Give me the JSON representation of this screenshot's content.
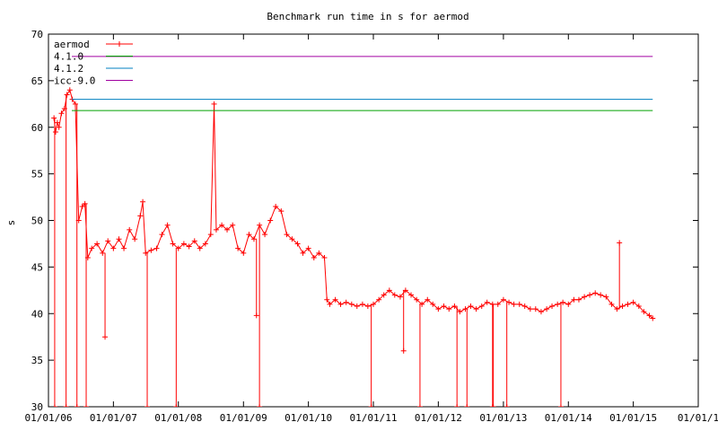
{
  "chart_data": {
    "type": "line",
    "title": "Benchmark run time in s for aermod",
    "ylabel": "s",
    "xlabel": "",
    "xlim": [
      "2006-01-01",
      "2016-01-01"
    ],
    "ylim": [
      30,
      70
    ],
    "y_ticks": [
      30,
      35,
      40,
      45,
      50,
      55,
      60,
      65,
      70
    ],
    "x_ticks": [
      {
        "date": "2006-01-01",
        "label": "01/01/06"
      },
      {
        "date": "2007-01-01",
        "label": "01/01/07"
      },
      {
        "date": "2008-01-01",
        "label": "01/01/08"
      },
      {
        "date": "2009-01-01",
        "label": "01/01/09"
      },
      {
        "date": "2010-01-01",
        "label": "01/01/10"
      },
      {
        "date": "2011-01-01",
        "label": "01/01/11"
      },
      {
        "date": "2012-01-01",
        "label": "01/01/12"
      },
      {
        "date": "2013-01-01",
        "label": "01/01/13"
      },
      {
        "date": "2014-01-01",
        "label": "01/01/14"
      },
      {
        "date": "2015-01-01",
        "label": "01/01/15"
      },
      {
        "date": "2016-01-01",
        "label": "01/01/1"
      }
    ],
    "grid": false,
    "legend_position": "top-left",
    "series": [
      {
        "name": "aermod",
        "color": "#ff0000",
        "marker": "plus",
        "points": [
          [
            "2006-02-01",
            61.0
          ],
          [
            "2006-02-10",
            59.5
          ],
          [
            "2006-02-20",
            60.5
          ],
          [
            "2006-03-01",
            60.0
          ],
          [
            "2006-03-15",
            61.5
          ],
          [
            "2006-04-01",
            62.0
          ],
          [
            "2006-04-15",
            63.5
          ],
          [
            "2006-05-01",
            64.0
          ],
          [
            "2006-05-15",
            63.0
          ],
          [
            "2006-06-01",
            62.5
          ],
          [
            "2006-06-20",
            50.0
          ],
          [
            "2006-07-10",
            51.5
          ],
          [
            "2006-07-25",
            51.8
          ],
          [
            "2006-08-10",
            46.0
          ],
          [
            "2006-09-01",
            47.0
          ],
          [
            "2006-10-01",
            47.5
          ],
          [
            "2006-11-01",
            46.5
          ],
          [
            "2006-12-01",
            47.8
          ],
          [
            "2007-01-01",
            47.0
          ],
          [
            "2007-02-01",
            48.0
          ],
          [
            "2007-03-01",
            47.0
          ],
          [
            "2007-04-01",
            49.0
          ],
          [
            "2007-05-01",
            48.0
          ],
          [
            "2007-06-01",
            50.5
          ],
          [
            "2007-06-15",
            52.0
          ],
          [
            "2007-07-01",
            46.5
          ],
          [
            "2007-08-01",
            46.8
          ],
          [
            "2007-09-01",
            47.0
          ],
          [
            "2007-10-01",
            48.5
          ],
          [
            "2007-11-01",
            49.5
          ],
          [
            "2007-12-01",
            47.5
          ],
          [
            "2008-01-01",
            47.0
          ],
          [
            "2008-02-01",
            47.5
          ],
          [
            "2008-03-01",
            47.2
          ],
          [
            "2008-04-01",
            47.8
          ],
          [
            "2008-05-01",
            47.0
          ],
          [
            "2008-06-01",
            47.5
          ],
          [
            "2008-07-01",
            48.5
          ],
          [
            "2008-07-20",
            62.5
          ],
          [
            "2008-08-01",
            49.0
          ],
          [
            "2008-09-01",
            49.5
          ],
          [
            "2008-10-01",
            49.0
          ],
          [
            "2008-11-01",
            49.5
          ],
          [
            "2008-12-01",
            47.0
          ],
          [
            "2009-01-01",
            46.5
          ],
          [
            "2009-02-01",
            48.5
          ],
          [
            "2009-03-01",
            48.0
          ],
          [
            "2009-04-01",
            49.5
          ],
          [
            "2009-05-01",
            48.5
          ],
          [
            "2009-06-01",
            50.0
          ],
          [
            "2009-07-01",
            51.5
          ],
          [
            "2009-08-01",
            51.0
          ],
          [
            "2009-09-01",
            48.5
          ],
          [
            "2009-10-01",
            48.0
          ],
          [
            "2009-11-01",
            47.5
          ],
          [
            "2009-12-01",
            46.5
          ],
          [
            "2010-01-01",
            47.0
          ],
          [
            "2010-02-01",
            46.0
          ],
          [
            "2010-03-01",
            46.5
          ],
          [
            "2010-04-01",
            46.0
          ],
          [
            "2010-04-15",
            41.5
          ],
          [
            "2010-05-01",
            41.0
          ],
          [
            "2010-06-01",
            41.5
          ],
          [
            "2010-07-01",
            41.0
          ],
          [
            "2010-08-01",
            41.2
          ],
          [
            "2010-09-01",
            41.0
          ],
          [
            "2010-10-01",
            40.8
          ],
          [
            "2010-11-01",
            41.0
          ],
          [
            "2010-12-01",
            40.8
          ],
          [
            "2011-01-01",
            41.0
          ],
          [
            "2011-02-01",
            41.5
          ],
          [
            "2011-03-01",
            42.0
          ],
          [
            "2011-04-01",
            42.5
          ],
          [
            "2011-05-01",
            42.0
          ],
          [
            "2011-06-01",
            41.8
          ],
          [
            "2011-07-01",
            42.5
          ],
          [
            "2011-08-01",
            42.0
          ],
          [
            "2011-09-01",
            41.5
          ],
          [
            "2011-10-01",
            41.0
          ],
          [
            "2011-11-01",
            41.5
          ],
          [
            "2011-12-01",
            41.0
          ],
          [
            "2012-01-01",
            40.5
          ],
          [
            "2012-02-01",
            40.8
          ],
          [
            "2012-03-01",
            40.5
          ],
          [
            "2012-04-01",
            40.8
          ],
          [
            "2012-05-01",
            40.2
          ],
          [
            "2012-06-01",
            40.5
          ],
          [
            "2012-07-01",
            40.8
          ],
          [
            "2012-08-01",
            40.5
          ],
          [
            "2012-09-01",
            40.8
          ],
          [
            "2012-10-01",
            41.2
          ],
          [
            "2012-11-01",
            41.0
          ],
          [
            "2012-12-01",
            41.0
          ],
          [
            "2013-01-01",
            41.5
          ],
          [
            "2013-02-01",
            41.2
          ],
          [
            "2013-03-01",
            41.0
          ],
          [
            "2013-04-01",
            41.0
          ],
          [
            "2013-05-01",
            40.8
          ],
          [
            "2013-06-01",
            40.5
          ],
          [
            "2013-07-01",
            40.5
          ],
          [
            "2013-08-01",
            40.2
          ],
          [
            "2013-09-01",
            40.5
          ],
          [
            "2013-10-01",
            40.8
          ],
          [
            "2013-11-01",
            41.0
          ],
          [
            "2013-12-01",
            41.2
          ],
          [
            "2014-01-01",
            41.0
          ],
          [
            "2014-02-01",
            41.5
          ],
          [
            "2014-03-01",
            41.5
          ],
          [
            "2014-04-01",
            41.8
          ],
          [
            "2014-05-01",
            42.0
          ],
          [
            "2014-06-01",
            42.2
          ],
          [
            "2014-07-01",
            42.0
          ],
          [
            "2014-08-01",
            41.8
          ],
          [
            "2014-09-01",
            41.0
          ],
          [
            "2014-10-01",
            40.5
          ],
          [
            "2014-11-01",
            40.8
          ],
          [
            "2014-12-01",
            41.0
          ],
          [
            "2015-01-01",
            41.2
          ],
          [
            "2015-02-01",
            40.8
          ],
          [
            "2015-03-01",
            40.2
          ],
          [
            "2015-04-01",
            39.8
          ],
          [
            "2015-04-20",
            39.5
          ]
        ],
        "spikes": [
          [
            "2006-02-05",
            30.0
          ],
          [
            "2006-04-10",
            30.0
          ],
          [
            "2006-06-10",
            30.0
          ],
          [
            "2006-08-01",
            30.0
          ],
          [
            "2006-11-15",
            37.5
          ],
          [
            "2007-07-10",
            30.0
          ],
          [
            "2007-12-20",
            30.0
          ],
          [
            "2009-03-15",
            39.8
          ],
          [
            "2009-04-01",
            30.0
          ],
          [
            "2010-12-20",
            30.0
          ],
          [
            "2011-06-20",
            36.0
          ],
          [
            "2011-09-20",
            30.0
          ],
          [
            "2012-04-15",
            30.0
          ],
          [
            "2012-06-10",
            30.0
          ],
          [
            "2012-11-01",
            30.0
          ],
          [
            "2012-11-05",
            30.0
          ],
          [
            "2013-01-20",
            30.0
          ],
          [
            "2013-11-20",
            30.0
          ],
          [
            "2014-10-15",
            47.6
          ]
        ]
      },
      {
        "name": "4.1.0",
        "color": "#00a000",
        "constant": 61.8,
        "x_end": "2015-04-20"
      },
      {
        "name": "4.1.2",
        "color": "#0080c0",
        "constant": 63.0,
        "x_end": "2015-04-20"
      },
      {
        "name": "icc-9.0",
        "color": "#a000a0",
        "constant": 67.6,
        "x_end": "2015-04-20"
      }
    ]
  }
}
